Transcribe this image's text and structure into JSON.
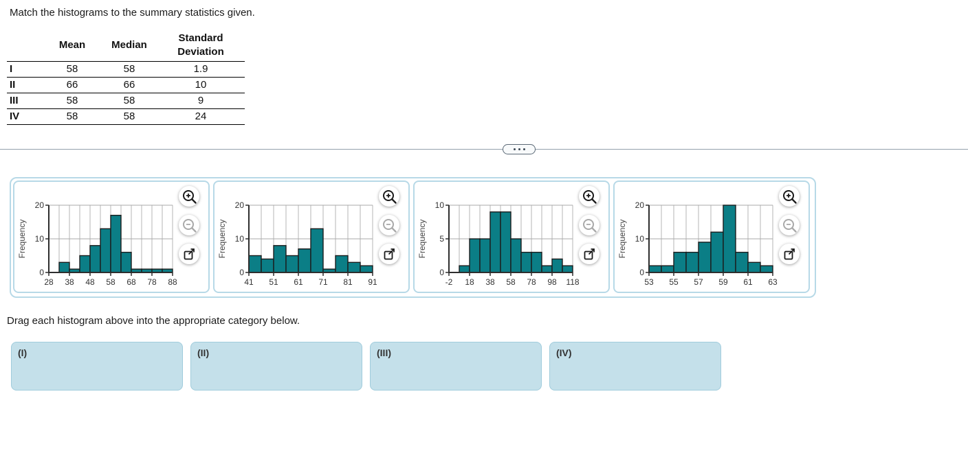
{
  "title": "Match the histograms to the summary statistics given.",
  "table": {
    "header_mean": "Mean",
    "header_median": "Median",
    "header_sd_line1": "Standard",
    "header_sd_line2": "Deviation",
    "rows": [
      {
        "label": "I",
        "mean": "58",
        "median": "58",
        "sd": "1.9"
      },
      {
        "label": "II",
        "mean": "66",
        "median": "66",
        "sd": "10"
      },
      {
        "label": "III",
        "mean": "58",
        "median": "58",
        "sd": "9"
      },
      {
        "label": "IV",
        "mean": "58",
        "median": "58",
        "sd": "24"
      }
    ]
  },
  "divider": {
    "ellipsis_icon": "three-dots"
  },
  "icons": {
    "zoom_in": "magnifier-plus",
    "zoom_out": "magnifier-minus",
    "open_external": "arrow-out-of-box"
  },
  "instruction": "Drag each histogram above into the appropriate category below.",
  "drop_zones": [
    {
      "label": "(I)"
    },
    {
      "label": "(II)"
    },
    {
      "label": "(III)"
    },
    {
      "label": "(IV)"
    }
  ],
  "colors": {
    "bar_fill": "#0b7e86",
    "bar_stroke": "#1c1c1c",
    "grid_vertical": "#b4b4b4",
    "grid_horizontal": "#a9a9a9",
    "axis": "#2e2e2e",
    "tick_text": "#333333",
    "panel_border": "#b7d9e7",
    "dropzone_fill": "#c4e0ea",
    "dropzone_border": "#a0ccdc",
    "divider": "#93a0ac"
  },
  "chart_data": [
    {
      "type": "bar",
      "ylabel": "Frequency",
      "xlim": [
        28,
        88
      ],
      "ylim": [
        0,
        20
      ],
      "x_ticks": [
        28,
        38,
        48,
        58,
        68,
        78,
        88
      ],
      "y_ticks": [
        0,
        10,
        20
      ],
      "grid_step": 5,
      "bin_width": 5,
      "bins_start": 33,
      "frequencies": [
        3,
        1,
        5,
        8,
        13,
        17,
        6,
        1,
        1,
        1,
        1
      ]
    },
    {
      "type": "bar",
      "ylabel": "Frequency",
      "xlim": [
        41,
        91
      ],
      "ylim": [
        0,
        20
      ],
      "x_ticks": [
        41,
        51,
        61,
        71,
        81,
        91
      ],
      "y_ticks": [
        0,
        10,
        20
      ],
      "grid_step": 5,
      "bin_width": 5,
      "bins_start": 41,
      "frequencies": [
        5,
        4,
        8,
        5,
        7,
        13,
        1,
        5,
        3,
        2
      ]
    },
    {
      "type": "bar",
      "ylabel": "Frequency",
      "xlim": [
        -2,
        118
      ],
      "ylim": [
        0,
        10
      ],
      "x_ticks": [
        -2,
        18,
        38,
        58,
        78,
        98,
        118
      ],
      "y_ticks": [
        0,
        5,
        10
      ],
      "grid_step": 10,
      "bin_width": 10,
      "bins_start": 8,
      "frequencies": [
        1,
        5,
        5,
        9,
        9,
        5,
        3,
        3,
        1,
        2,
        1
      ]
    },
    {
      "type": "bar",
      "ylabel": "Frequency",
      "xlim": [
        53,
        63
      ],
      "ylim": [
        0,
        20
      ],
      "x_ticks": [
        53,
        55,
        57,
        59,
        61,
        63
      ],
      "y_ticks": [
        0,
        10,
        20
      ],
      "grid_step": 1,
      "bin_width": 1,
      "bins_start": 53,
      "frequencies": [
        2,
        2,
        6,
        6,
        9,
        12,
        20,
        6,
        3,
        2
      ]
    }
  ]
}
